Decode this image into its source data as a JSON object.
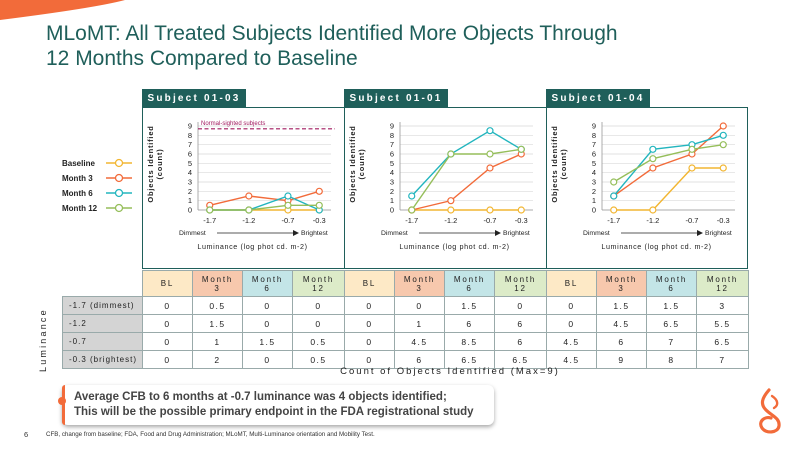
{
  "slide": {
    "title_line1": "MLoMT: All Treated Subjects Identified More Objects Through",
    "title_line2": "12 Months Compared to Baseline",
    "page_number": "6",
    "footnote": "CFB, change from baseline; FDA, Food and Drug Administration; MLoMT, Multi-Luminance orientation and Mobility Test.",
    "callout_line1": "Average CFB to 6 months at -0.7 luminance was 4 objects identified;",
    "callout_line2": "This will be the possible primary endpoint in the FDA registrational study",
    "table_side_label": "Luminance",
    "table_caption": "Count of Objects Identified (Max=9)"
  },
  "colors": {
    "teal": "#1f5f5a",
    "accent": "#f26b3a",
    "baseline": "#f2b632",
    "month3": "#f26b3a",
    "month6": "#22b5be",
    "month12": "#95be5a",
    "normal_line": "#a0195e"
  },
  "legend": [
    {
      "label": "Baseline",
      "color": "#f2b632"
    },
    {
      "label": "Month 3",
      "color": "#f26b3a"
    },
    {
      "label": "Month 6",
      "color": "#22b5be"
    },
    {
      "label": "Month 12",
      "color": "#95be5a"
    }
  ],
  "table": {
    "headers": [
      [
        "BL",
        "Month",
        "3"
      ],
      [
        "Month",
        "6"
      ],
      [
        "Month",
        "12"
      ]
    ],
    "row_labels": [
      "-1.7 (dimmest)",
      "-1.2",
      "-0.7",
      "-0.3 (brightest)"
    ],
    "rows": [
      [
        "0",
        "0.5",
        "0",
        "0",
        "0",
        "0",
        "1.5",
        "0",
        "0",
        "1.5",
        "1.5",
        "3"
      ],
      [
        "0",
        "1.5",
        "0",
        "0",
        "0",
        "1",
        "6",
        "6",
        "0",
        "4.5",
        "6.5",
        "5.5"
      ],
      [
        "0",
        "1",
        "1.5",
        "0.5",
        "0",
        "4.5",
        "8.5",
        "6",
        "4.5",
        "6",
        "7",
        "6.5"
      ],
      [
        "0",
        "2",
        "0",
        "0.5",
        "0",
        "6",
        "6.5",
        "6.5",
        "4.5",
        "9",
        "8",
        "7"
      ]
    ]
  },
  "chart_data": [
    {
      "type": "line",
      "title": "Subject 01-03",
      "x": [
        -1.7,
        -1.2,
        -0.7,
        -0.3
      ],
      "x_tick_labels": [
        "-1.7",
        "-1.2",
        "-0.7",
        "-0.3"
      ],
      "xlabel": "Luminance (log phot cd. m-2)",
      "x_end_labels": [
        "Dimmest",
        "Brightest"
      ],
      "ylabel": "Objects Identified (count)",
      "ylim": [
        0,
        9
      ],
      "y_ticks": [
        0,
        1,
        2,
        3,
        4,
        5,
        6,
        7,
        8,
        9
      ],
      "reference_line": {
        "label": "Normal-sighted subjects",
        "value": 8.7
      },
      "series": [
        {
          "name": "Baseline",
          "values": [
            0,
            0,
            0,
            0
          ]
        },
        {
          "name": "Month 3",
          "values": [
            0.5,
            1.5,
            1,
            2
          ]
        },
        {
          "name": "Month 6",
          "values": [
            0,
            0,
            1.5,
            0
          ]
        },
        {
          "name": "Month 12",
          "values": [
            0,
            0,
            0.5,
            0.5
          ]
        }
      ]
    },
    {
      "type": "line",
      "title": "Subject 01-01",
      "x": [
        -1.7,
        -1.2,
        -0.7,
        -0.3
      ],
      "x_tick_labels": [
        "-1.7",
        "-1.2",
        "-0.7",
        "-0.3"
      ],
      "xlabel": "Luminance (log phot cd. m-2)",
      "x_end_labels": [
        "Dimmest",
        "Brightest"
      ],
      "ylabel": "Objects Identified (count)",
      "ylim": [
        0,
        9
      ],
      "y_ticks": [
        0,
        1,
        2,
        3,
        4,
        5,
        6,
        7,
        8,
        9
      ],
      "series": [
        {
          "name": "Baseline",
          "values": [
            0,
            0,
            0,
            0
          ]
        },
        {
          "name": "Month 3",
          "values": [
            0,
            1,
            4.5,
            6
          ]
        },
        {
          "name": "Month 6",
          "values": [
            1.5,
            6,
            8.5,
            6.5
          ]
        },
        {
          "name": "Month 12",
          "values": [
            0,
            6,
            6,
            6.5
          ]
        }
      ]
    },
    {
      "type": "line",
      "title": "Subject 01-04",
      "x": [
        -1.7,
        -1.2,
        -0.7,
        -0.3
      ],
      "x_tick_labels": [
        "-1.7",
        "-1.2",
        "-0.7",
        "-0.3"
      ],
      "xlabel": "Luminance (log phot cd. m-2)",
      "x_end_labels": [
        "Dimmest",
        "Brightest"
      ],
      "ylabel": "Objects Identified (count)",
      "ylim": [
        0,
        9
      ],
      "y_ticks": [
        0,
        1,
        2,
        3,
        4,
        5,
        6,
        7,
        8,
        9
      ],
      "series": [
        {
          "name": "Baseline",
          "values": [
            0,
            0,
            4.5,
            4.5
          ]
        },
        {
          "name": "Month 3",
          "values": [
            1.5,
            4.5,
            6,
            9
          ]
        },
        {
          "name": "Month 6",
          "values": [
            1.5,
            6.5,
            7,
            8
          ]
        },
        {
          "name": "Month 12",
          "values": [
            3,
            5.5,
            6.5,
            7
          ]
        }
      ]
    }
  ]
}
